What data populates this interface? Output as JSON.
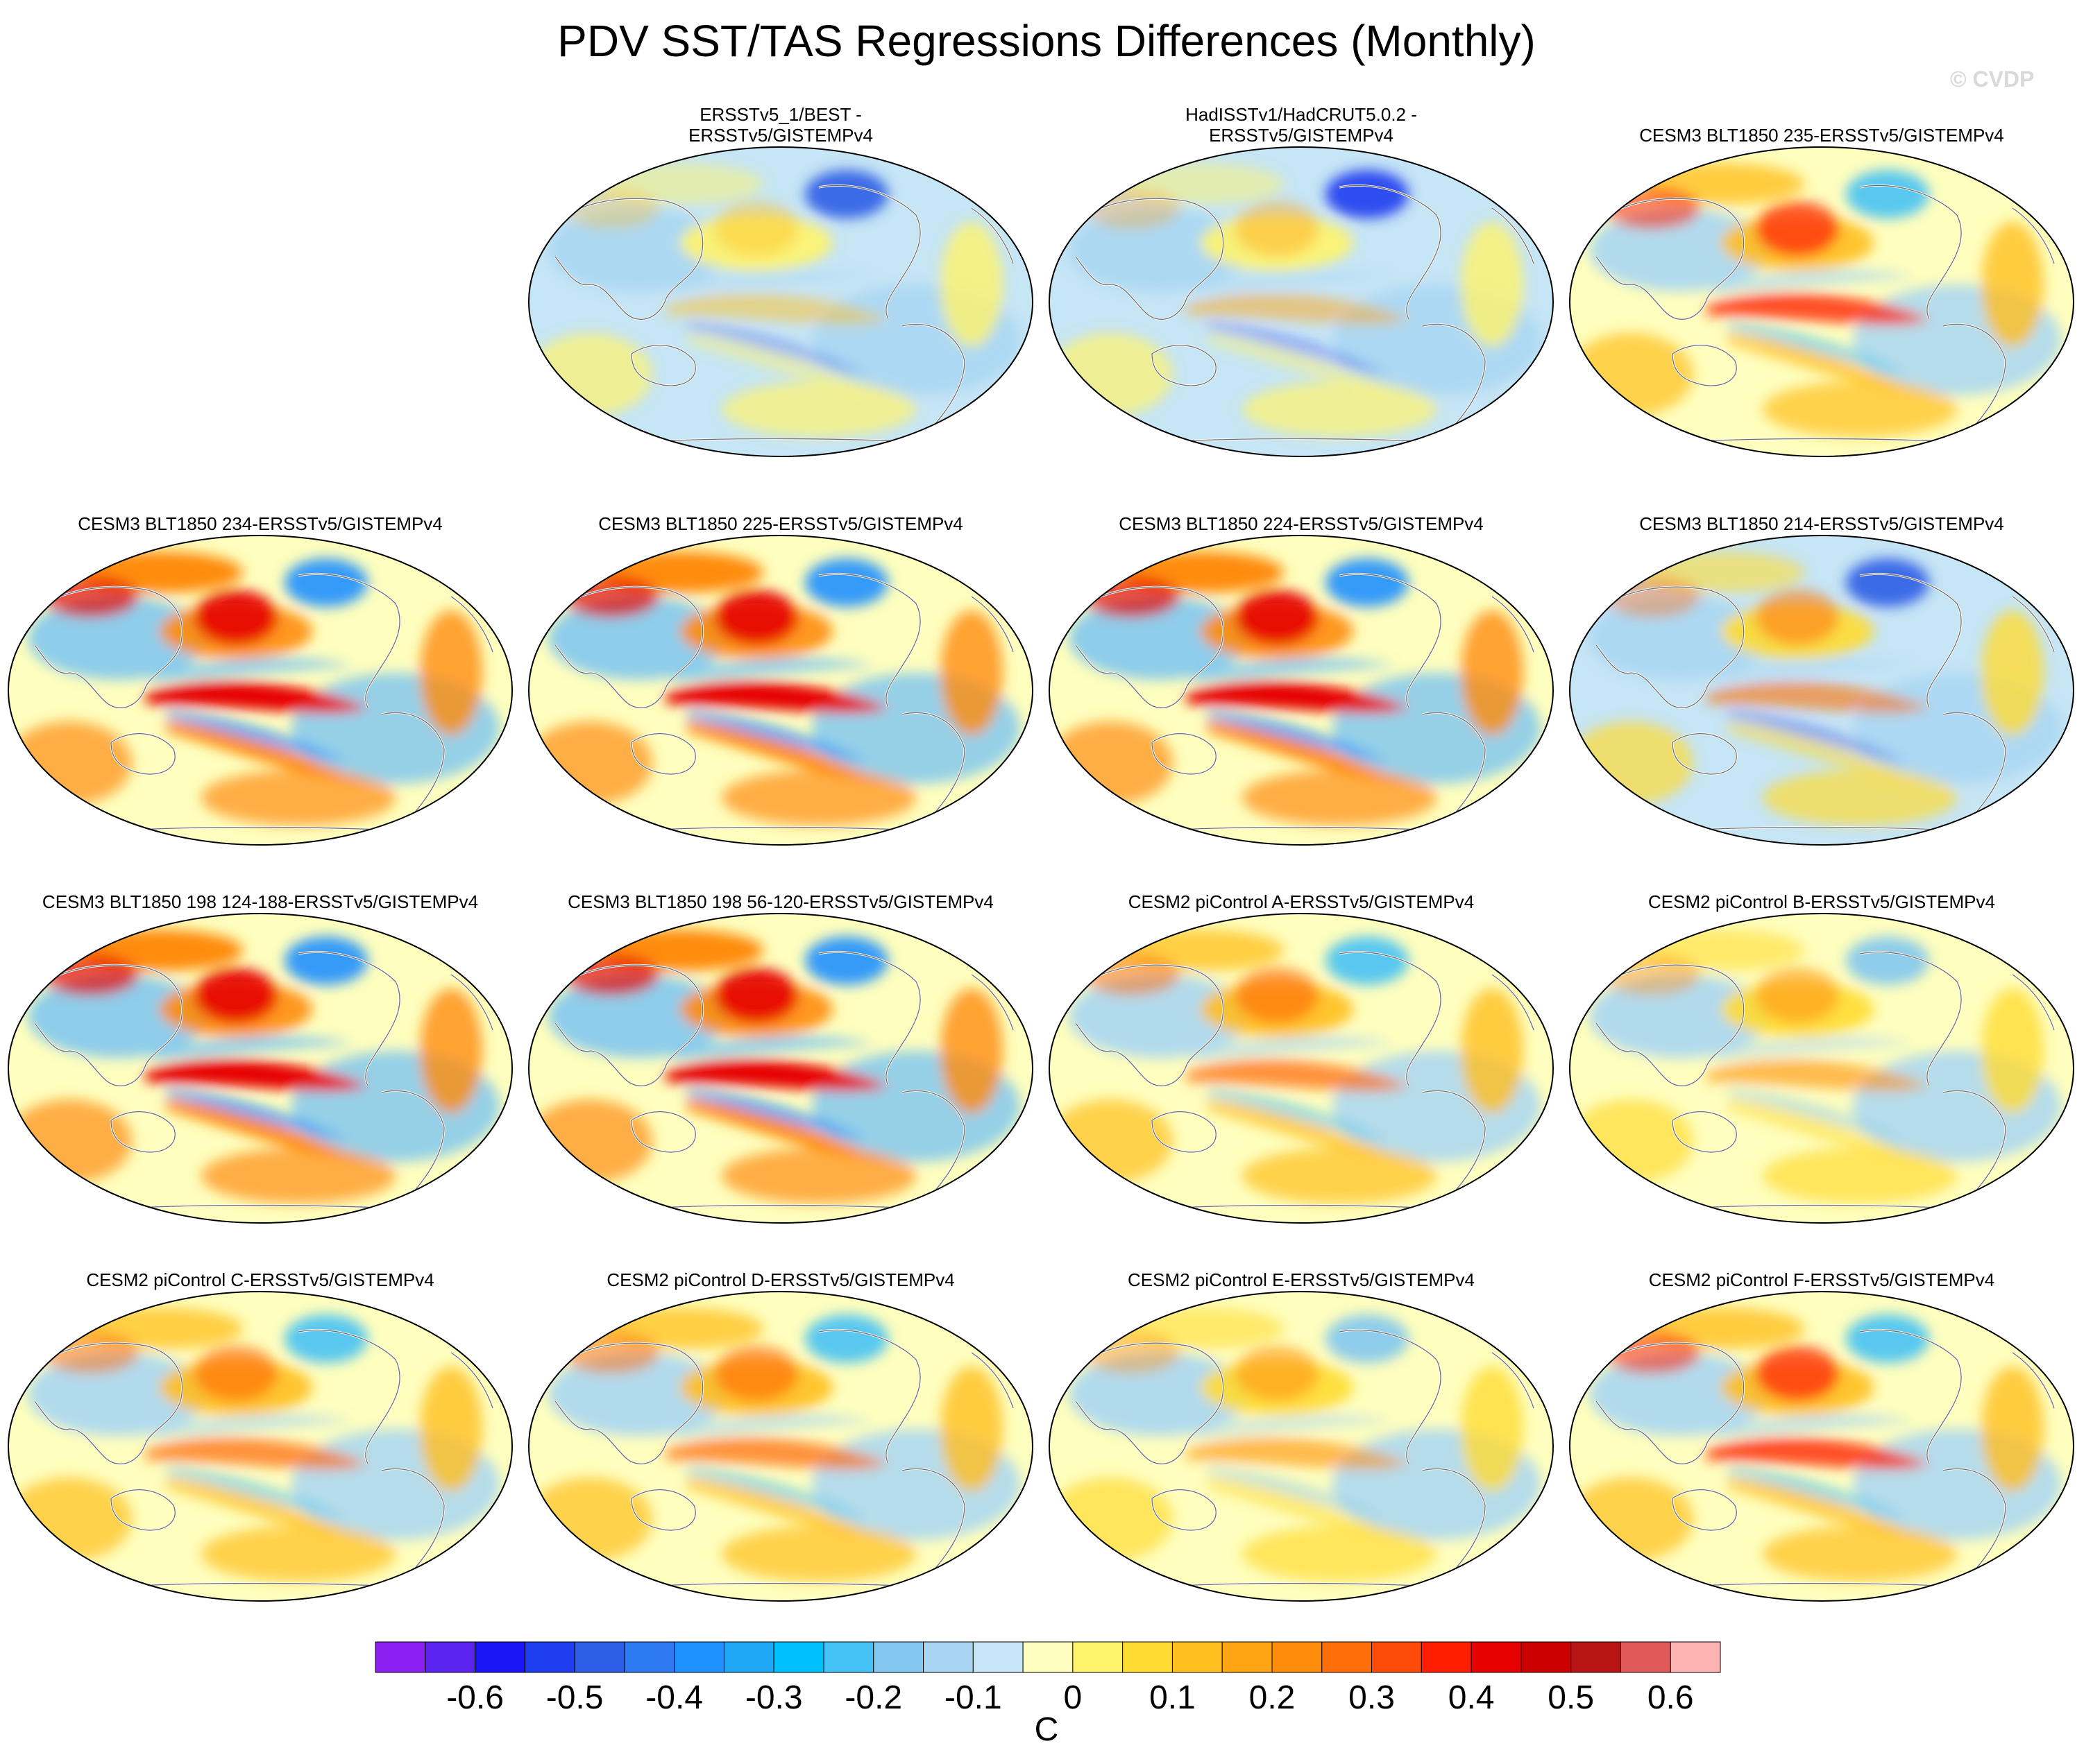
{
  "title": "PDV SST/TAS Regressions Differences (Monthly)",
  "watermark": "© CVDP",
  "panels": [
    {
      "title": "ERSSTv5_1/BEST -\nERSSTv5/GISTEMPv4",
      "pattern": "obs1"
    },
    {
      "title": "HadISSTv1/HadCRUT5.0.2 -\nERSSTv5/GISTEMPv4",
      "pattern": "obs2"
    },
    {
      "title": "CESM3 BLT1850 235-ERSSTv5/GISTEMPv4",
      "pattern": "warm-north"
    },
    {
      "title": "CESM3 BLT1850 234-ERSSTv5/GISTEMPv4",
      "pattern": "strong-tropic"
    },
    {
      "title": "CESM3 BLT1850 225-ERSSTv5/GISTEMPv4",
      "pattern": "strong-tropic"
    },
    {
      "title": "CESM3 BLT1850 224-ERSSTv5/GISTEMPv4",
      "pattern": "strong-tropic"
    },
    {
      "title": "CESM3 BLT1850 214-ERSSTv5/GISTEMPv4",
      "pattern": "cool"
    },
    {
      "title": "CESM3 BLT1850 198 124-188-ERSSTv5/GISTEMPv4",
      "pattern": "strong-tropic"
    },
    {
      "title": "CESM3 BLT1850 198 56-120-ERSSTv5/GISTEMPv4",
      "pattern": "strong-tropic"
    },
    {
      "title": "CESM2 piControl A-ERSSTv5/GISTEMPv4",
      "pattern": "moderate"
    },
    {
      "title": "CESM2 piControl B-ERSSTv5/GISTEMPv4",
      "pattern": "mild"
    },
    {
      "title": "CESM2 piControl C-ERSSTv5/GISTEMPv4",
      "pattern": "moderate"
    },
    {
      "title": "CESM2 piControl D-ERSSTv5/GISTEMPv4",
      "pattern": "moderate"
    },
    {
      "title": "CESM2 piControl E-ERSSTv5/GISTEMPv4",
      "pattern": "mild"
    },
    {
      "title": "CESM2 piControl F-ERSSTv5/GISTEMPv4",
      "pattern": "warm-north"
    }
  ],
  "colorbar": {
    "unit": "C",
    "colors": [
      "#8c1ff2",
      "#5a23f0",
      "#1a16f5",
      "#1e3cf0",
      "#2e5de6",
      "#2e7af2",
      "#1e90ff",
      "#1fa7f5",
      "#00c0ff",
      "#45c2f5",
      "#82c8ef",
      "#a8d6f2",
      "#c6e5f5",
      "#fefebe",
      "#fff46b",
      "#ffdc32",
      "#ffbf1e",
      "#ffa514",
      "#ff8c0a",
      "#ff6e0a",
      "#ff4b0a",
      "#ff1e00",
      "#e60000",
      "#cd0000",
      "#b91414",
      "#e15a5a",
      "#ffb4b4"
    ],
    "tick_labels": [
      "-0.6",
      "-0.5",
      "-0.4",
      "-0.3",
      "-0.2",
      "-0.1",
      "0",
      "0.1",
      "0.2",
      "0.3",
      "0.4",
      "0.5",
      "0.6"
    ]
  }
}
